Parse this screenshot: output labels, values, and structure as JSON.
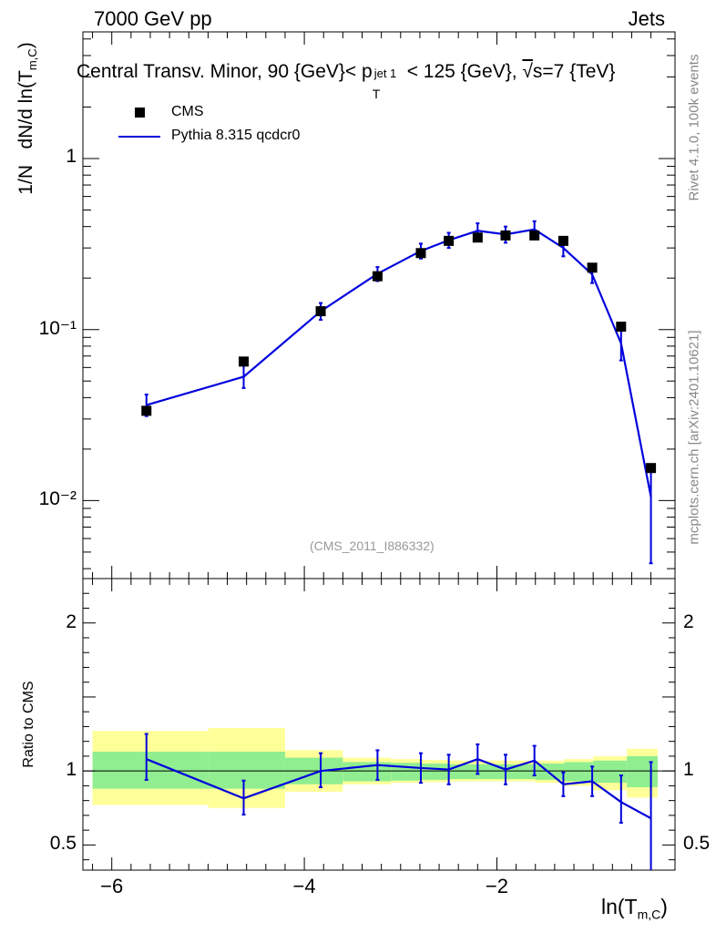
{
  "header": {
    "left": "7000 GeV pp",
    "right": "Jets",
    "title_prefix": "Central Transv. Minor, 90 {GeV}< p",
    "title_sup": "jet 1",
    "title_sub": "T",
    "title_mid": "< 125 {GeV}, ",
    "title_sqrt": "√",
    "title_suffix": "s=7 {TeV}"
  },
  "side_labels": {
    "rivet": "Rivet 4.1.0,  100k events",
    "mcplots": "mcplots.cern.ch [arXiv:2401.10621]"
  },
  "watermark": "(CMS_2011_I886332)",
  "chart_data": {
    "type": "scatter",
    "title": "Central Transv. Minor, 90 {GeV}< p_T^{jet 1} < 125 {GeV}, √s=7 {TeV}",
    "xlabel": "ln(T_{m,C})",
    "ylabel": "1/N  dN/d ln(T_{m,C})",
    "ratio_ylabel": "Ratio to CMS",
    "xlim": [
      -6.3,
      -0.15
    ],
    "ylim": [
      0.0035,
      5.5
    ],
    "yscale": "log",
    "ratio_ylim": [
      0.33,
      2.3
    ],
    "x_ticks": [
      "−6",
      "−4",
      "−2"
    ],
    "y_ticks": [
      "10⁻²",
      "10⁻¹",
      "1"
    ],
    "ratio_y_ticks": [
      "0.5",
      "1",
      "2"
    ],
    "legend": [
      {
        "name": "CMS",
        "marker": "square",
        "color": "#000000"
      },
      {
        "name": "Pythia 8.315 qcdcr0",
        "marker": "line",
        "color": "#0000dd"
      }
    ],
    "series": [
      {
        "name": "CMS",
        "x": [
          -5.64,
          -4.63,
          -3.83,
          -3.24,
          -2.79,
          -2.5,
          -2.2,
          -1.91,
          -1.61,
          -1.31,
          -1.01,
          -0.71,
          -0.4
        ],
        "values": [
          0.0335,
          0.065,
          0.128,
          0.205,
          0.28,
          0.33,
          0.345,
          0.355,
          0.355,
          0.33,
          0.23,
          0.104,
          0.0155
        ]
      },
      {
        "name": "Pythia 8.315 qcdcr0",
        "x": [
          -5.64,
          -4.63,
          -3.83,
          -3.24,
          -2.79,
          -2.5,
          -2.2,
          -1.91,
          -1.61,
          -1.31,
          -1.01,
          -0.71,
          -0.4
        ],
        "values": [
          0.0362,
          0.053,
          0.128,
          0.212,
          0.288,
          0.333,
          0.378,
          0.36,
          0.385,
          0.3,
          0.21,
          0.083,
          0.0105
        ],
        "err_up": [
          0.0055,
          0.0085,
          0.015,
          0.02,
          0.03,
          0.035,
          0.04,
          0.04,
          0.045,
          0.035,
          0.025,
          0.017,
          0.0055
        ],
        "err_dn": [
          0.005,
          0.0075,
          0.014,
          0.02,
          0.028,
          0.033,
          0.038,
          0.038,
          0.042,
          0.032,
          0.023,
          0.017,
          0.0062
        ]
      }
    ],
    "ratio": {
      "x": [
        -5.64,
        -4.63,
        -3.83,
        -3.24,
        -2.79,
        -2.5,
        -2.2,
        -1.91,
        -1.61,
        -1.31,
        -1.01,
        -0.71,
        -0.4
      ],
      "values": [
        1.08,
        0.815,
        1.0,
        1.04,
        1.02,
        1.01,
        1.08,
        1.01,
        1.07,
        0.91,
        0.93,
        0.79,
        0.68
      ],
      "err_up": [
        0.17,
        0.12,
        0.12,
        0.1,
        0.1,
        0.1,
        0.1,
        0.1,
        0.1,
        0.08,
        0.1,
        0.18,
        0.38
      ],
      "err_dn": [
        0.14,
        0.11,
        0.11,
        0.1,
        0.1,
        0.1,
        0.1,
        0.1,
        0.1,
        0.08,
        0.1,
        0.14,
        0.37
      ],
      "band_bins": [
        {
          "x0": -6.2,
          "x1": -5.0,
          "y_lo": 0.88,
          "y_hi": 1.13,
          "y_lo2": 0.77,
          "y_hi2": 1.27
        },
        {
          "x0": -5.0,
          "x1": -4.2,
          "y_lo": 0.88,
          "y_hi": 1.13,
          "y_lo2": 0.75,
          "y_hi2": 1.29
        },
        {
          "x0": -4.2,
          "x1": -3.6,
          "y_lo": 0.91,
          "y_hi": 1.09,
          "y_lo2": 0.86,
          "y_hi2": 1.14
        },
        {
          "x0": -3.6,
          "x1": -3.1,
          "y_lo": 0.93,
          "y_hi": 1.06,
          "y_lo2": 0.91,
          "y_hi2": 1.09
        },
        {
          "x0": -3.1,
          "x1": -2.8,
          "y_lo": 0.935,
          "y_hi": 1.055,
          "y_lo2": 0.92,
          "y_hi2": 1.08
        },
        {
          "x0": -2.8,
          "x1": -2.5,
          "y_lo": 0.94,
          "y_hi": 1.05,
          "y_lo2": 0.925,
          "y_hi2": 1.075
        },
        {
          "x0": -2.5,
          "x1": -2.2,
          "y_lo": 0.945,
          "y_hi": 1.045,
          "y_lo2": 0.93,
          "y_hi2": 1.07
        },
        {
          "x0": -2.2,
          "x1": -1.9,
          "y_lo": 0.945,
          "y_hi": 1.045,
          "y_lo2": 0.93,
          "y_hi2": 1.07
        },
        {
          "x0": -1.9,
          "x1": -1.6,
          "y_lo": 0.945,
          "y_hi": 1.045,
          "y_lo2": 0.93,
          "y_hi2": 1.07
        },
        {
          "x0": -1.6,
          "x1": -1.3,
          "y_lo": 0.94,
          "y_hi": 1.05,
          "y_lo2": 0.92,
          "y_hi2": 1.07
        },
        {
          "x0": -1.3,
          "x1": -1.0,
          "y_lo": 0.93,
          "y_hi": 1.06,
          "y_lo2": 0.9,
          "y_hi2": 1.08
        },
        {
          "x0": -1.0,
          "x1": -0.65,
          "y_lo": 0.92,
          "y_hi": 1.07,
          "y_lo2": 0.87,
          "y_hi2": 1.1
        },
        {
          "x0": -0.65,
          "x1": -0.33,
          "y_lo": 0.89,
          "y_hi": 1.1,
          "y_lo2": 0.82,
          "y_hi2": 1.15
        }
      ]
    },
    "colors": {
      "data": "#000000",
      "mc": "#0000dd",
      "band_inner": "#90ee90",
      "band_outer": "#ffff99"
    }
  }
}
